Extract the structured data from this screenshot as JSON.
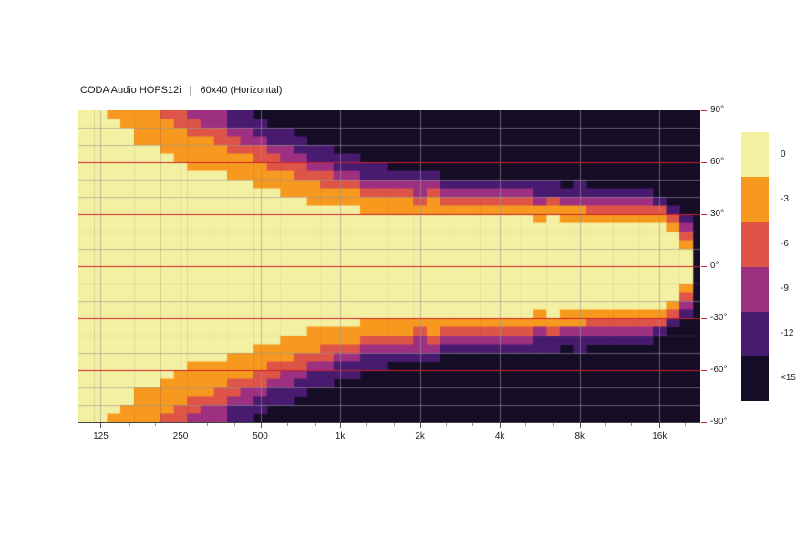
{
  "title": {
    "model": "CODA Audio HOPS12i",
    "separator": "|",
    "config": "60x40 (Horizontal)"
  },
  "colors": {
    "levels": [
      "#f4f0a2",
      "#f8991f",
      "#de5548",
      "#9e3081",
      "#481b70",
      "#150d26"
    ],
    "red_line": "#cb2026",
    "grid": "rgba(150,150,150,0.6)",
    "axis_text": "#222222",
    "background": "#ffffff"
  },
  "legend": {
    "labels": [
      "0",
      "-3",
      "-6",
      "-9",
      "-12",
      "<15"
    ]
  },
  "y_axis": {
    "labels": [
      {
        "angle": 90,
        "label": "90°"
      },
      {
        "angle": 60,
        "label": "60°"
      },
      {
        "angle": 30,
        "label": "30°"
      },
      {
        "angle": 0,
        "label": "0°"
      },
      {
        "angle": -30,
        "label": "-30°"
      },
      {
        "angle": -60,
        "label": "-60°"
      },
      {
        "angle": -90,
        "label": "-90°"
      }
    ]
  },
  "x_axis": {
    "major": [
      {
        "f": 125,
        "label": "125"
      },
      {
        "f": 250,
        "label": "250"
      },
      {
        "f": 500,
        "label": "500"
      },
      {
        "f": 1000,
        "label": "1k"
      },
      {
        "f": 2000,
        "label": "2k"
      },
      {
        "f": 4000,
        "label": "4k"
      },
      {
        "f": 8000,
        "label": "8k"
      },
      {
        "f": 16000,
        "label": "16k"
      }
    ],
    "minor": [
      160,
      200,
      315,
      400,
      630,
      800,
      1250,
      1600,
      2500,
      3150,
      5000,
      6300,
      10000,
      12500,
      20000
    ]
  },
  "chart_data": {
    "type": "heatmap",
    "title": "CODA Audio HOPS12i | 60x40 (Horizontal)",
    "description": "Horizontal directivity (beamwidth) map: attenuation in dB vs frequency and off-axis angle",
    "x_scale": "log",
    "x_range": [
      103,
      22800
    ],
    "y_range": [
      -90,
      90
    ],
    "angle_step_deg": 5,
    "level_bands_db": [
      "0",
      "-3",
      "-6",
      "-9",
      "-12",
      "<15"
    ],
    "frequencies": [
      111,
      125,
      140,
      157,
      177,
      198,
      223,
      250,
      281,
      315,
      354,
      397,
      445,
      500,
      561,
      630,
      707,
      794,
      891,
      1000,
      1122,
      1260,
      1414,
      1587,
      1782,
      2000,
      2245,
      2520,
      2828,
      3175,
      3564,
      4000,
      4490,
      5040,
      5657,
      6350,
      7127,
      8000,
      8980,
      10079,
      11314,
      12699,
      14254,
      16000,
      17959,
      20159
    ],
    "half_angle_0dB": [
      90,
      90,
      84,
      78,
      72,
      68,
      64,
      60,
      57,
      55,
      53,
      50,
      48,
      45,
      43,
      41,
      39,
      37,
      36,
      34,
      33,
      32,
      31,
      30,
      30,
      29,
      31,
      29,
      28,
      29,
      28,
      29,
      28,
      28,
      27,
      28,
      27,
      27,
      26,
      27,
      26,
      26,
      25,
      24,
      21,
      12
    ],
    "band_width_3dB": [
      24,
      23,
      22,
      22,
      21,
      20,
      20,
      20,
      19,
      18,
      17,
      16,
      16,
      15,
      14,
      13,
      12,
      11,
      11,
      10,
      10,
      9,
      9,
      8,
      8,
      8,
      7,
      7,
      7,
      7,
      7,
      7,
      6,
      6,
      6,
      6,
      6,
      6,
      5,
      5,
      5,
      5,
      5,
      5,
      4,
      4
    ],
    "band_width_6dB": [
      12,
      12,
      11,
      11,
      11,
      10,
      10,
      10,
      9,
      9,
      9,
      8,
      8,
      8,
      7,
      7,
      7,
      6,
      6,
      6,
      6,
      5,
      5,
      5,
      5,
      5,
      5,
      5,
      4,
      4,
      4,
      5,
      4,
      4,
      4,
      4,
      4,
      4,
      4,
      4,
      4,
      4,
      4,
      4,
      3,
      3
    ],
    "band_width_9dB": [
      12,
      12,
      11,
      11,
      10,
      10,
      10,
      10,
      9,
      9,
      9,
      8,
      8,
      9,
      8,
      8,
      7,
      7,
      7,
      7,
      6,
      6,
      6,
      6,
      6,
      6,
      5,
      5,
      5,
      5,
      5,
      5,
      5,
      5,
      5,
      4,
      4,
      5,
      4,
      4,
      4,
      4,
      4,
      4,
      4,
      4
    ],
    "band_width_12dB": [
      14,
      13,
      13,
      12,
      12,
      12,
      11,
      12,
      11,
      11,
      10,
      10,
      10,
      10,
      9,
      9,
      9,
      8,
      8,
      8,
      8,
      7,
      7,
      7,
      7,
      7,
      6,
      6,
      6,
      6,
      6,
      6,
      6,
      6,
      6,
      6,
      5,
      6,
      5,
      5,
      5,
      5,
      5,
      5,
      5,
      5
    ],
    "red_gridlines_deg": [
      60,
      30,
      0,
      -30,
      -60
    ],
    "gray_gridlines_deg": [
      80,
      70,
      50,
      40,
      20,
      10,
      -10,
      -20,
      -40,
      -50,
      -70,
      -80
    ],
    "vertical_gridlines_hz": [
      125,
      250,
      500,
      1000,
      2000,
      4000,
      8000,
      16000
    ]
  }
}
